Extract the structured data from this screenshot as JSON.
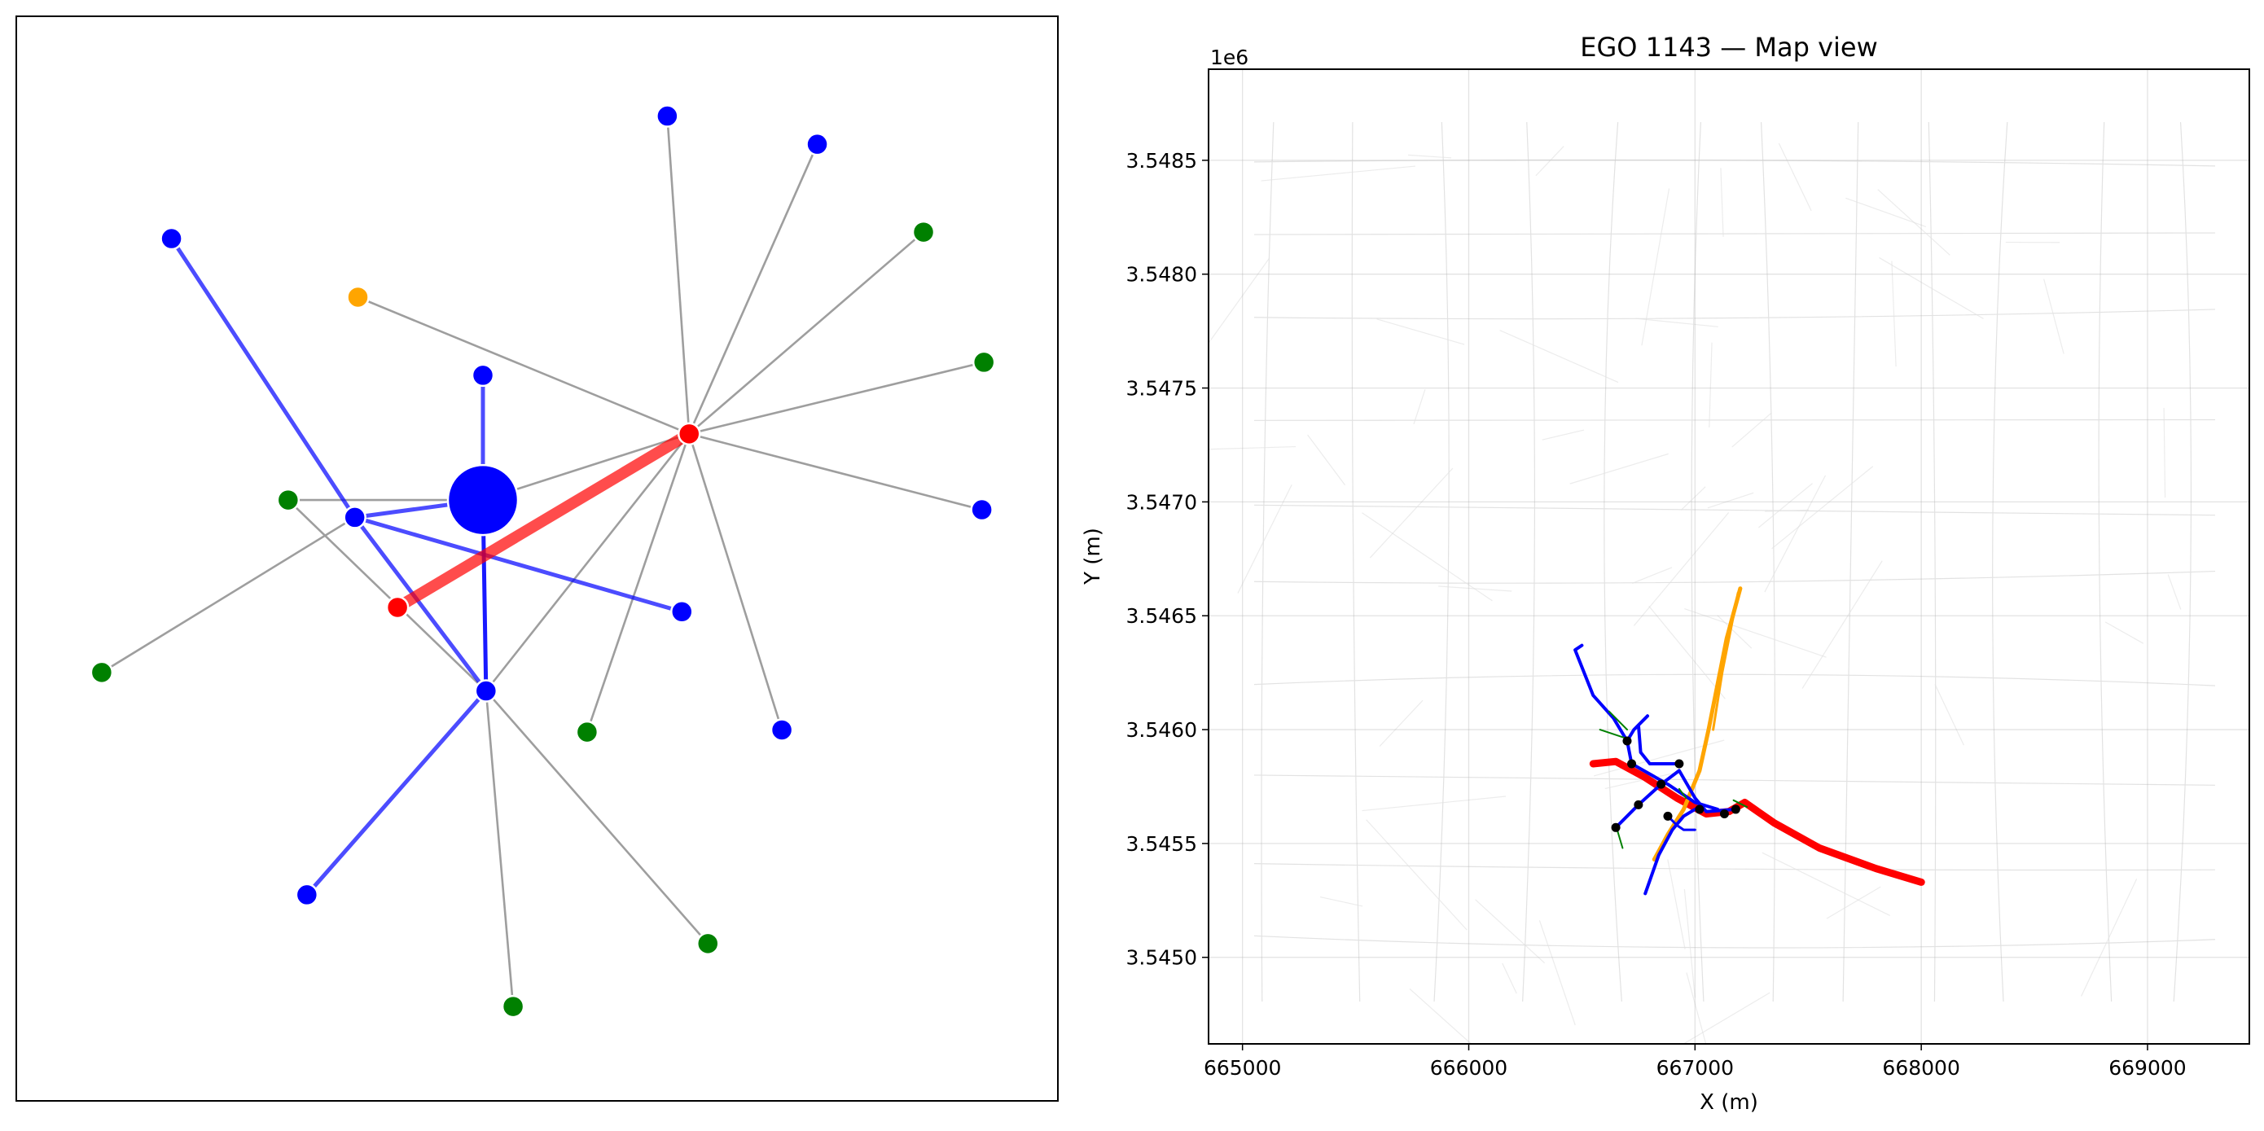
{
  "chart_data": [
    {
      "type": "network",
      "title": "",
      "xlabel": "",
      "ylabel": "",
      "axes_ticks": false,
      "node_colors": {
        "vehicle": "#0000ff",
        "pedestrian": "#008000",
        "cyclist": "#ffa500",
        "ego": "#ff0000"
      },
      "nodes": [
        {
          "id": "n1",
          "x": 0.625,
          "y": 0.908,
          "kind": "vehicle",
          "big": false
        },
        {
          "id": "n2",
          "x": 0.769,
          "y": 0.882,
          "kind": "vehicle",
          "big": false
        },
        {
          "id": "n3",
          "x": 0.149,
          "y": 0.795,
          "kind": "vehicle",
          "big": false
        },
        {
          "id": "n4",
          "x": 0.871,
          "y": 0.801,
          "kind": "pedestrian",
          "big": false
        },
        {
          "id": "n5",
          "x": 0.328,
          "y": 0.741,
          "kind": "cyclist",
          "big": false
        },
        {
          "id": "n6",
          "x": 0.929,
          "y": 0.681,
          "kind": "pedestrian",
          "big": false
        },
        {
          "id": "n7",
          "x": 0.448,
          "y": 0.669,
          "kind": "vehicle",
          "big": false
        },
        {
          "id": "n8",
          "x": 0.646,
          "y": 0.615,
          "kind": "ego",
          "big": false
        },
        {
          "id": "n9",
          "x": 0.448,
          "y": 0.554,
          "kind": "vehicle",
          "big": true
        },
        {
          "id": "n10",
          "x": 0.261,
          "y": 0.554,
          "kind": "pedestrian",
          "big": false
        },
        {
          "id": "n11",
          "x": 0.325,
          "y": 0.538,
          "kind": "vehicle",
          "big": false
        },
        {
          "id": "n12",
          "x": 0.927,
          "y": 0.545,
          "kind": "vehicle",
          "big": false
        },
        {
          "id": "n13",
          "x": 0.366,
          "y": 0.455,
          "kind": "ego",
          "big": false
        },
        {
          "id": "n14",
          "x": 0.639,
          "y": 0.451,
          "kind": "vehicle",
          "big": false
        },
        {
          "id": "n15",
          "x": 0.082,
          "y": 0.395,
          "kind": "pedestrian",
          "big": false
        },
        {
          "id": "n16",
          "x": 0.451,
          "y": 0.378,
          "kind": "vehicle",
          "big": false
        },
        {
          "id": "n17",
          "x": 0.735,
          "y": 0.342,
          "kind": "vehicle",
          "big": false
        },
        {
          "id": "n18",
          "x": 0.548,
          "y": 0.34,
          "kind": "pedestrian",
          "big": false
        },
        {
          "id": "n19",
          "x": 0.279,
          "y": 0.19,
          "kind": "vehicle",
          "big": false
        },
        {
          "id": "n20",
          "x": 0.664,
          "y": 0.145,
          "kind": "pedestrian",
          "big": false
        },
        {
          "id": "n21",
          "x": 0.477,
          "y": 0.087,
          "kind": "pedestrian",
          "big": false
        }
      ],
      "edges": [
        {
          "from": "n8",
          "to": "n1",
          "type": "gray"
        },
        {
          "from": "n8",
          "to": "n2",
          "type": "gray"
        },
        {
          "from": "n8",
          "to": "n4",
          "type": "gray"
        },
        {
          "from": "n8",
          "to": "n6",
          "type": "gray"
        },
        {
          "from": "n8",
          "to": "n12",
          "type": "gray"
        },
        {
          "from": "n8",
          "to": "n5",
          "type": "gray"
        },
        {
          "from": "n8",
          "to": "n9",
          "type": "gray"
        },
        {
          "from": "n8",
          "to": "n17",
          "type": "gray"
        },
        {
          "from": "n8",
          "to": "n18",
          "type": "gray"
        },
        {
          "from": "n8",
          "to": "n16",
          "type": "gray"
        },
        {
          "from": "n10",
          "to": "n9",
          "type": "gray"
        },
        {
          "from": "n10",
          "to": "n16",
          "type": "gray"
        },
        {
          "from": "n11",
          "to": "n15",
          "type": "gray"
        },
        {
          "from": "n16",
          "to": "n20",
          "type": "gray"
        },
        {
          "from": "n16",
          "to": "n21",
          "type": "gray"
        },
        {
          "from": "n3",
          "to": "n11",
          "type": "blue"
        },
        {
          "from": "n11",
          "to": "n9",
          "type": "blue"
        },
        {
          "from": "n11",
          "to": "n14",
          "type": "blue"
        },
        {
          "from": "n11",
          "to": "n16",
          "type": "blue"
        },
        {
          "from": "n7",
          "to": "n9",
          "type": "blue"
        },
        {
          "from": "n9",
          "to": "n16",
          "type": "blue_dark"
        },
        {
          "from": "n16",
          "to": "n19",
          "type": "blue"
        },
        {
          "from": "n13",
          "to": "n8",
          "type": "red"
        }
      ]
    },
    {
      "type": "line",
      "title": "EGO 1143 — Map view",
      "xlabel": "X (m)",
      "ylabel": "Y (m)",
      "y_offset_label": "1e6",
      "xlim": [
        664850,
        669450
      ],
      "ylim": [
        3544620,
        3548900
      ],
      "xticks": [
        665000,
        666000,
        667000,
        668000,
        669000
      ],
      "xtick_labels": [
        "665000",
        "666000",
        "667000",
        "668000",
        "669000"
      ],
      "yticks": [
        3545000,
        3545500,
        3546000,
        3546500,
        3547000,
        3547500,
        3548000,
        3548500
      ],
      "ytick_labels": [
        "3.5450",
        "3.5455",
        "3.5460",
        "3.5465",
        "3.5470",
        "3.5475",
        "3.5480",
        "3.5485"
      ],
      "grid": true,
      "series": [
        {
          "role": "ego_track",
          "color": "#ff0000",
          "width": 9,
          "points": [
            [
              666550,
              3545850
            ],
            [
              666650,
              3545860
            ],
            [
              666780,
              3545790
            ],
            [
              666920,
              3545700
            ],
            [
              667050,
              3545630
            ],
            [
              667150,
              3545640
            ],
            [
              667220,
              3545680
            ],
            [
              667350,
              3545590
            ],
            [
              667550,
              3545480
            ],
            [
              667800,
              3545390
            ],
            [
              668000,
              3545330
            ]
          ]
        },
        {
          "role": "agent_track",
          "color": "#ffa500",
          "width": 5,
          "points": [
            [
              666820,
              3545430
            ],
            [
              666880,
              3545540
            ],
            [
              666950,
              3545650
            ],
            [
              667020,
              3545820
            ],
            [
              667060,
              3546000
            ],
            [
              667100,
              3546200
            ],
            [
              667140,
              3546400
            ],
            [
              667200,
              3546620
            ]
          ]
        },
        {
          "role": "agent_track",
          "color": "#ffa500",
          "width": 3,
          "points": [
            [
              667080,
              3546000
            ],
            [
              667120,
              3546250
            ],
            [
              667190,
              3546600
            ]
          ]
        },
        {
          "role": "agent_track",
          "color": "#0000ff",
          "width": 4,
          "points": [
            [
              666500,
              3546370
            ],
            [
              666470,
              3546350
            ],
            [
              666550,
              3546150
            ],
            [
              666640,
              3546050
            ],
            [
              666700,
              3545950
            ],
            [
              666720,
              3545850
            ],
            [
              666880,
              3545760
            ],
            [
              667000,
              3545680
            ],
            [
              667100,
              3545650
            ]
          ]
        },
        {
          "role": "agent_track",
          "color": "#0000ff",
          "width": 4,
          "points": [
            [
              666650,
              3545570
            ],
            [
              666750,
              3545670
            ],
            [
              666850,
              3545760
            ],
            [
              666930,
              3545820
            ],
            [
              667000,
              3545700
            ],
            [
              667050,
              3545640
            ],
            [
              667180,
              3545650
            ]
          ]
        },
        {
          "role": "agent_track",
          "color": "#0000ff",
          "width": 4,
          "points": [
            [
              666700,
              3545950
            ],
            [
              666730,
              3546000
            ],
            [
              666790,
              3546060
            ],
            [
              666750,
              3546020
            ],
            [
              666760,
              3545900
            ],
            [
              666800,
              3545850
            ],
            [
              666930,
              3545850
            ]
          ]
        },
        {
          "role": "agent_track",
          "color": "#0000ff",
          "width": 4,
          "points": [
            [
              666780,
              3545280
            ],
            [
              666840,
              3545450
            ],
            [
              666900,
              3545560
            ],
            [
              666950,
              3545620
            ],
            [
              667000,
              3545650
            ]
          ]
        },
        {
          "role": "agent_track",
          "color": "#0000ff",
          "width": 3,
          "points": [
            [
              666880,
              3545620
            ],
            [
              666920,
              3545580
            ],
            [
              666950,
              3545560
            ],
            [
              667000,
              3545560
            ]
          ]
        },
        {
          "role": "ped_track",
          "color": "#008000",
          "width": 2,
          "points": [
            [
              666580,
              3546000
            ],
            [
              666700,
              3545960
            ]
          ]
        },
        {
          "role": "ped_track",
          "color": "#008000",
          "width": 2,
          "points": [
            [
              666620,
              3546080
            ],
            [
              666700,
              3546000
            ]
          ]
        },
        {
          "role": "ped_track",
          "color": "#008000",
          "width": 2,
          "points": [
            [
              666650,
              3545580
            ],
            [
              666680,
              3545480
            ]
          ]
        },
        {
          "role": "ped_track",
          "color": "#008000",
          "width": 2,
          "points": [
            [
              667170,
              3545690
            ],
            [
              667230,
              3545660
            ]
          ]
        },
        {
          "role": "ped_track",
          "color": "#008000",
          "width": 2,
          "points": [
            [
              666930,
              3545740
            ],
            [
              666960,
              3545700
            ]
          ]
        }
      ],
      "markers": [
        [
          666700,
          3545950
        ],
        [
          666720,
          3545850
        ],
        [
          666930,
          3545850
        ],
        [
          666850,
          3545760
        ],
        [
          666650,
          3545570
        ],
        [
          666750,
          3545670
        ],
        [
          667020,
          3545650
        ],
        [
          667130,
          3545630
        ],
        [
          667180,
          3545650
        ],
        [
          666880,
          3545620
        ]
      ]
    }
  ]
}
